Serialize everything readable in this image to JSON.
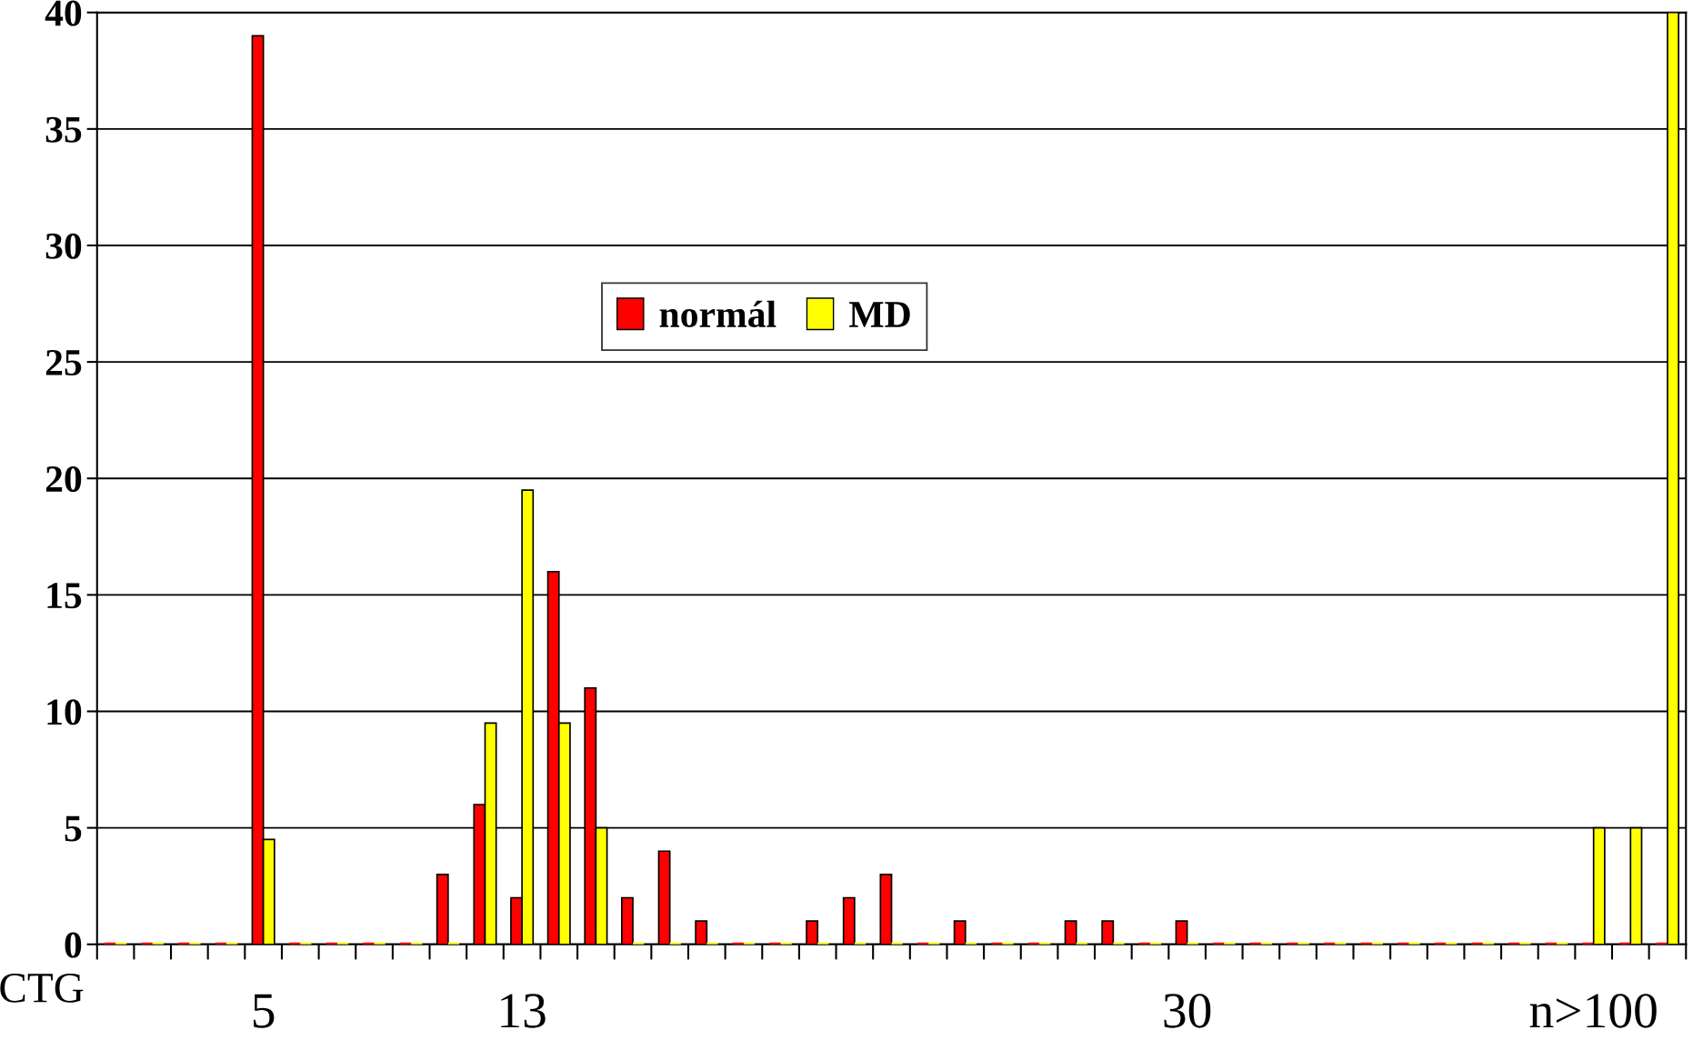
{
  "chart_data": {
    "type": "bar",
    "xlabel": "CTG",
    "categories": [
      null,
      null,
      null,
      null,
      "5",
      null,
      null,
      null,
      null,
      null,
      null,
      "13",
      null,
      null,
      null,
      null,
      null,
      null,
      null,
      null,
      null,
      null,
      null,
      null,
      null,
      null,
      null,
      null,
      null,
      "30",
      null,
      null,
      null,
      null,
      null,
      null,
      null,
      null,
      null,
      null,
      "n>100",
      null,
      null
    ],
    "series": [
      {
        "name": "normál",
        "color": "#ff0000",
        "values": [
          0,
          0,
          0,
          0,
          39,
          0,
          0,
          0,
          0,
          3,
          6,
          2,
          16,
          11,
          2,
          4,
          1,
          0,
          0,
          1,
          2,
          3,
          0,
          1,
          0,
          0,
          1,
          1,
          0,
          1,
          0,
          0,
          0,
          0,
          0,
          0,
          0,
          0,
          0,
          0,
          0,
          0,
          0
        ]
      },
      {
        "name": "MD",
        "color": "#ffff00",
        "values": [
          0,
          0,
          0,
          0,
          4.5,
          0,
          0,
          0,
          0,
          0,
          9.5,
          19.5,
          9.5,
          5,
          0,
          0,
          0,
          0,
          0,
          0,
          0,
          0,
          0,
          0,
          0,
          0,
          0,
          0,
          0,
          0,
          0,
          0,
          0,
          0,
          0,
          0,
          0,
          0,
          0,
          0,
          5,
          5,
          40
        ]
      }
    ],
    "ylim": [
      0,
      40
    ],
    "yticks": [
      0,
      5,
      10,
      15,
      20,
      25,
      30,
      35,
      40
    ],
    "grid": "y",
    "legend": "top"
  }
}
